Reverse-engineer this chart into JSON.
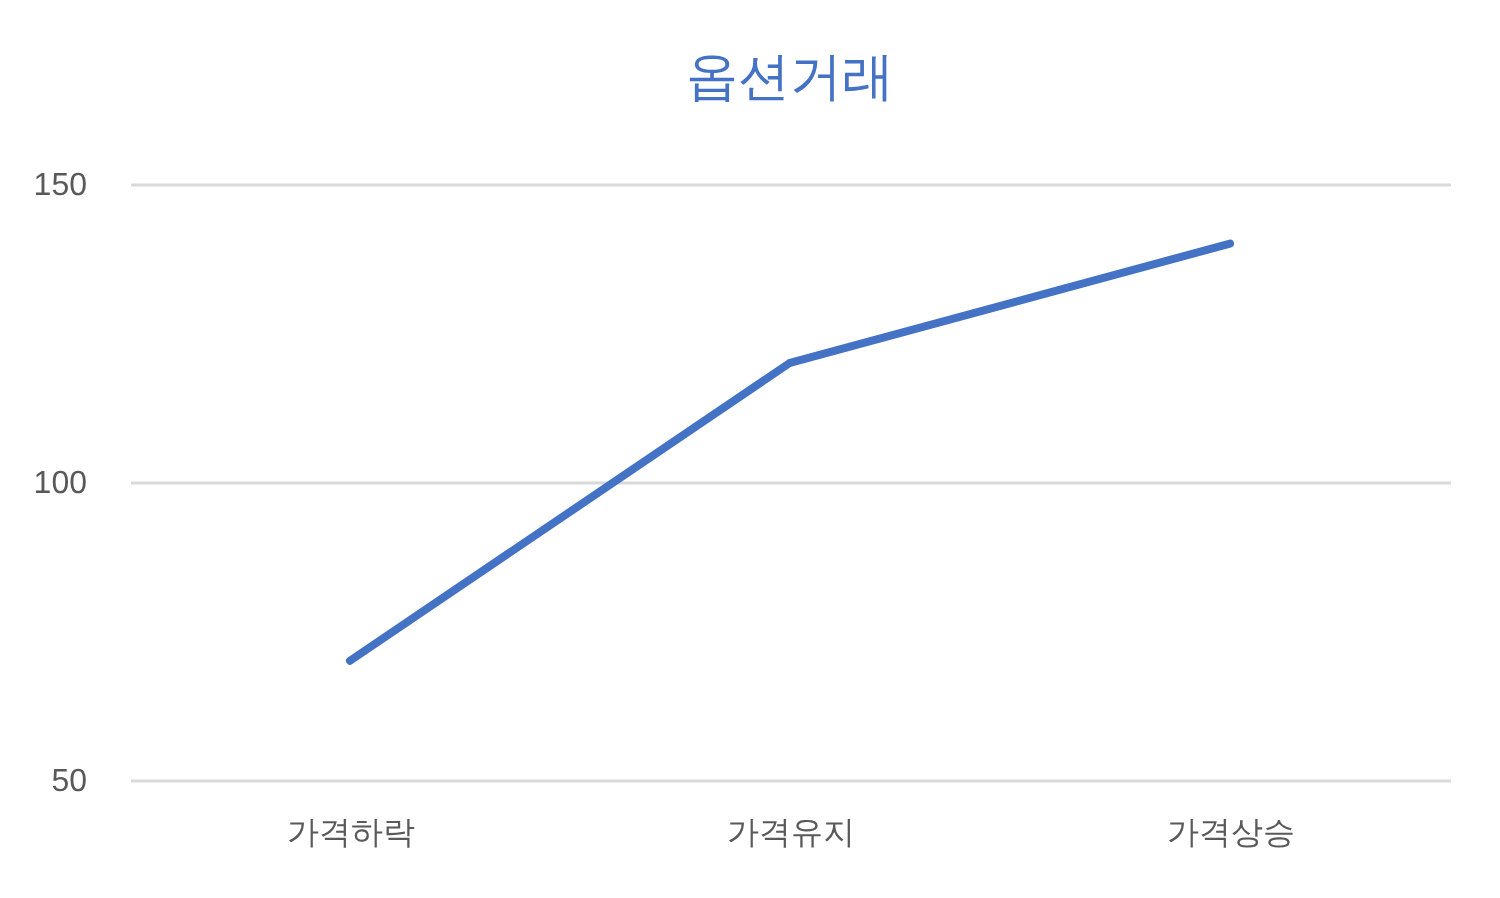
{
  "chart_data": {
    "type": "line",
    "title": "옵션거래",
    "categories": [
      "가격하락",
      "가격유지",
      "가격상승"
    ],
    "series": [
      {
        "color": "#4472c4",
        "values": [
          70,
          120,
          140
        ]
      }
    ],
    "ylim": [
      50,
      150
    ],
    "yticks": [
      50,
      100,
      150
    ],
    "grid": "y",
    "marker": "none",
    "line_style": "solid"
  }
}
